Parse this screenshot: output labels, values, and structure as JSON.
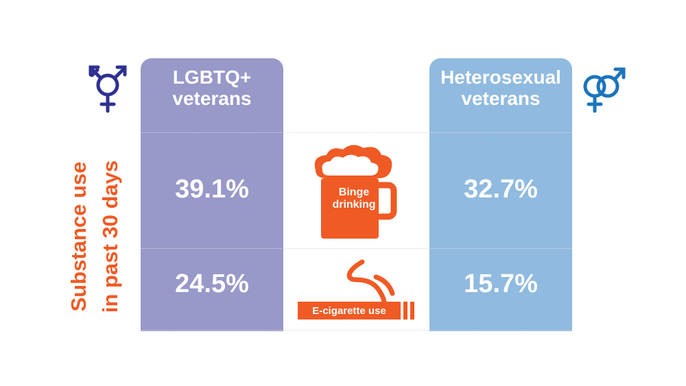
{
  "chart_data": {
    "type": "table",
    "ylabel_line1": "Substance use",
    "ylabel_line2": "in past 30 days",
    "columns": [
      {
        "label_line1": "LGBTQ+",
        "label_line2": "veterans",
        "color": "#9898c9",
        "icon": "transgender-symbol-icon"
      },
      {
        "label_line1": "Heterosexual",
        "label_line2": "veterans",
        "color": "#90badf",
        "icon": "heterosexual-symbol-icon"
      }
    ],
    "rows": [
      {
        "category": "Binge drinking",
        "icon_label_line1": "Binge",
        "icon_label_line2": "drinking",
        "icon": "beer-mug-icon",
        "values": [
          "39.1%",
          "32.7%"
        ],
        "numeric_values": [
          39.1,
          32.7
        ]
      },
      {
        "category": "E-cigarette use",
        "icon_label": "E-cigarette use",
        "icon": "cigarette-icon",
        "values": [
          "24.5%",
          "15.7%"
        ],
        "numeric_values": [
          24.5,
          15.7
        ]
      }
    ]
  },
  "colors": {
    "accent": "#f05a24",
    "lgbtq": "#9898c9",
    "hetero": "#90badf",
    "trans_symbol": "#2e3192",
    "hetero_symbol": "#1b75bc"
  }
}
